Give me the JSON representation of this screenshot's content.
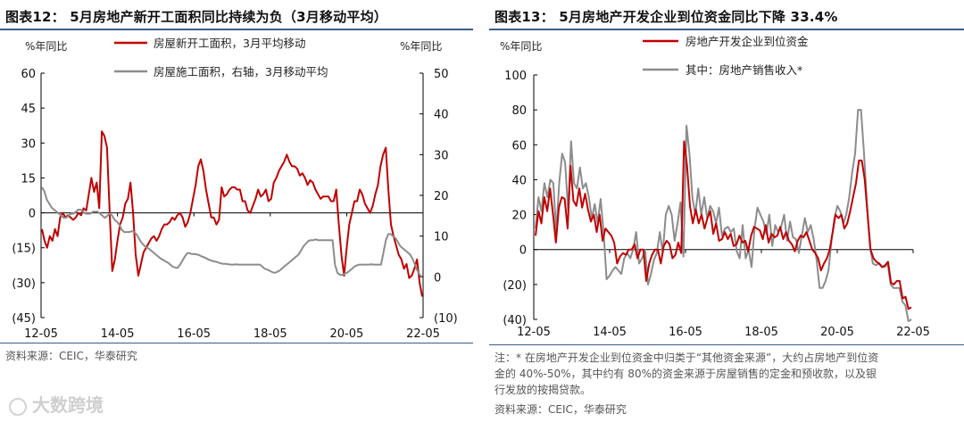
{
  "chart_data": [
    {
      "type": "line",
      "title": "图表12： 5月房地产新开工面积同比持续为负（3月移动平均）",
      "ylabel_left": "%年同比",
      "ylabel_right": "%年同比",
      "ylim_left": [
        -45,
        60
      ],
      "ylim_right": [
        -10,
        50
      ],
      "yticks_left": [
        60,
        45,
        30,
        15,
        0,
        -15,
        -30,
        -45
      ],
      "yticks_left_labels": [
        "60",
        "45",
        "30",
        "15",
        "0",
        "(15)",
        "(30)",
        "(45)"
      ],
      "yticks_right": [
        50,
        40,
        30,
        20,
        10,
        0,
        -10
      ],
      "yticks_right_labels": [
        "50",
        "40",
        "30",
        "20",
        "10",
        "0",
        "(10)"
      ],
      "xticks": [
        "12-05",
        "14-05",
        "16-05",
        "18-05",
        "20-05",
        "22-05"
      ],
      "legend": "top-center",
      "series": [
        {
          "name": "房屋新开工面积，3月平均移动",
          "color": "#c00000",
          "axis": "left",
          "values": [
            -7,
            -12,
            -15,
            -10,
            -12,
            -7,
            -10,
            -2,
            0,
            -2,
            -1,
            -2,
            -3,
            -2,
            0,
            -1,
            2,
            1,
            8,
            15,
            9,
            13,
            2,
            35,
            33,
            28,
            0,
            -25,
            -20,
            -12,
            -5,
            -2,
            4,
            6,
            13,
            0,
            -18,
            -27,
            -22,
            -17,
            -15,
            -13,
            -11,
            -10,
            -12,
            -10,
            -7,
            -5,
            -5,
            -4,
            -2,
            -3,
            -1,
            0,
            -2,
            -6,
            -4,
            0,
            6,
            12,
            20,
            23,
            18,
            10,
            4,
            -2,
            -2,
            -5,
            -3,
            11,
            7,
            8,
            10,
            11,
            11,
            10,
            10,
            5,
            5,
            1,
            0,
            3,
            6,
            10,
            7,
            8,
            10,
            5,
            6,
            13,
            15,
            18,
            20,
            22,
            25,
            22,
            20,
            20,
            19,
            16,
            17,
            15,
            12,
            14,
            13,
            10,
            8,
            6,
            7,
            7,
            7,
            5,
            5,
            10,
            -5,
            -18,
            -27,
            -15,
            -5,
            0,
            5,
            5,
            10,
            8,
            4,
            2,
            0,
            3,
            8,
            12,
            20,
            25,
            28,
            10,
            -5,
            -10,
            -14,
            -18,
            -20,
            -24,
            -22,
            -28,
            -27,
            -24,
            -20,
            -30,
            -36
          ]
        },
        {
          "name": "房屋施工面积，右轴，3月移动平均",
          "color": "#8c8c8c",
          "axis": "right",
          "values": [
            22,
            21,
            19,
            18,
            17,
            16.5,
            16,
            15.5,
            15,
            14.5,
            14.5,
            15,
            15.5,
            15.5,
            16,
            16.5,
            16.5,
            16,
            15.5,
            15.5,
            15.5,
            16,
            16,
            16,
            15.5,
            15,
            14.5,
            15,
            15.5,
            15,
            14,
            13.5,
            12.8,
            11.5,
            11,
            11,
            11,
            11.2,
            11,
            10.5,
            9.5,
            8.5,
            7.8,
            7.3,
            7,
            6.5,
            6,
            5.5,
            5,
            4.5,
            4.2,
            3.8,
            3.5,
            3,
            2.5,
            2.3,
            2.2,
            3,
            4,
            5,
            5.8,
            5.8,
            5.6,
            5.6,
            5.5,
            5.3,
            5,
            4.8,
            4.5,
            4.2,
            4,
            3.8,
            3.7,
            3.5,
            3.3,
            3.2,
            3.2,
            3.1,
            3,
            3,
            3.1,
            3,
            3,
            3,
            3,
            3,
            3,
            3,
            3,
            3,
            3,
            2.5,
            2,
            1.8,
            1.5,
            1.2,
            1,
            1.2,
            1.5,
            2,
            2.5,
            3,
            3.5,
            4,
            4.5,
            5,
            5.5,
            6.5,
            7.5,
            8.2,
            8.8,
            9,
            9,
            9.2,
            9,
            9,
            9,
            9,
            9,
            9,
            9,
            3,
            1,
            0.5,
            0.5,
            0.8,
            1,
            1.5,
            2,
            2.5,
            2.8,
            3,
            3,
            3,
            3,
            3,
            3.1,
            3,
            3,
            3,
            3,
            6,
            9,
            10.5,
            10.5,
            10,
            9.5,
            8.5,
            7.5,
            7,
            6.5,
            6,
            5.5,
            4.5,
            3,
            1.5,
            0.5,
            0
          ]
        }
      ]
    },
    {
      "type": "line",
      "title": "图表13： 5月房地产开发企业到位资金同比下降 33.4%",
      "ylabel": "%年同比",
      "ylim": [
        -40,
        100
      ],
      "yticks": [
        100,
        80,
        60,
        40,
        20,
        0,
        -20,
        -40
      ],
      "yticks_labels": [
        "100",
        "80",
        "60",
        "40",
        "20",
        "0",
        "(20)",
        "(40)"
      ],
      "xticks": [
        "12-05",
        "14-05",
        "16-05",
        "18-05",
        "20-05",
        "22-05"
      ],
      "legend": "top-left",
      "series": [
        {
          "name": "房地产开发企业到位资金",
          "color": "#c00000",
          "values": [
            8,
            22,
            15,
            30,
            22,
            35,
            20,
            4,
            24,
            30,
            29,
            12,
            48,
            28,
            25,
            35,
            24,
            32,
            23,
            16,
            20,
            10,
            20,
            5,
            12,
            10,
            8,
            4,
            -8,
            -4,
            -2,
            -3,
            0,
            0,
            3,
            -5,
            0,
            0,
            -18,
            -8,
            -3,
            0,
            0,
            -8,
            2,
            5,
            3,
            -5,
            -3,
            4,
            -2,
            62,
            48,
            25,
            15,
            23,
            15,
            20,
            12,
            18,
            22,
            9,
            15,
            5,
            6,
            10,
            6,
            9,
            2,
            3,
            8,
            4,
            5,
            -1,
            8,
            13,
            12,
            11,
            6,
            14,
            4,
            9,
            7,
            8,
            13,
            6,
            10,
            5,
            3,
            -1,
            5,
            8,
            7,
            10,
            5,
            0,
            -2,
            -5,
            -12,
            -8,
            -5,
            0,
            10,
            20,
            18,
            20,
            12,
            15,
            22,
            30,
            38,
            51,
            51,
            40,
            20,
            0,
            -5,
            -7,
            -8,
            -10,
            -9,
            -7,
            -19,
            -20,
            -18,
            -18,
            -28,
            -27,
            -34,
            -33
          ]
        },
        {
          "name": "其中：房地产销售收入*",
          "color": "#8c8c8c",
          "values": [
            12,
            30,
            22,
            38,
            30,
            40,
            38,
            10,
            38,
            55,
            50,
            22,
            62,
            38,
            35,
            47,
            35,
            38,
            30,
            18,
            26,
            15,
            29,
            10,
            -17,
            -15,
            -12,
            -10,
            -12,
            -14,
            -5,
            -2,
            -5,
            0,
            10,
            -8,
            -5,
            0,
            -20,
            -14,
            -6,
            -2,
            10,
            -2,
            20,
            25,
            20,
            5,
            15,
            27,
            -4,
            71,
            55,
            30,
            20,
            35,
            20,
            30,
            18,
            25,
            22,
            15,
            24,
            8,
            12,
            13,
            10,
            12,
            -1,
            -5,
            14,
            -5,
            0,
            -10,
            12,
            24,
            20,
            16,
            9,
            20,
            2,
            14,
            10,
            13,
            20,
            5,
            16,
            7,
            6,
            -2,
            8,
            18,
            10,
            14,
            6,
            -6,
            -22,
            -22,
            -18,
            -12,
            5,
            18,
            25,
            22,
            15,
            20,
            30,
            44,
            55,
            80,
            80,
            55,
            26,
            2,
            -8,
            -9,
            -8,
            -10,
            -10,
            -8,
            -20,
            -22,
            -22,
            -22,
            -30,
            -32,
            -41,
            -40
          ]
        }
      ]
    }
  ],
  "notes": {
    "source_left": "资料来源：CEIC，华泰研究",
    "footnote_lines": [
      "注：* 在房地产开发企业到位资金中归类于“其他资金来源”，大约占房地产到位资",
      "金的 40%-50%，其中约有 80%的资金来源于房屋销售的定金和预收款，以及银",
      "行发放的按揭贷款。"
    ],
    "source_right": "资料来源：CEIC，华泰研究",
    "watermark": "大数跨境"
  }
}
